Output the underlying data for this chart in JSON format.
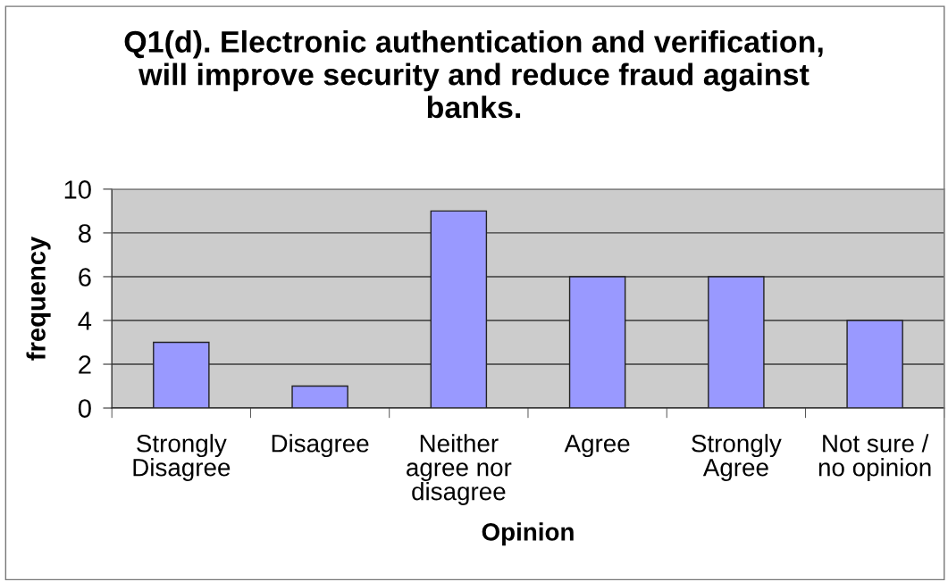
{
  "chart_data": {
    "type": "bar",
    "title": "Q1(d). Electronic authentication and verification,\nwill improve security and reduce fraud against\nbanks.",
    "xlabel": "Opinion",
    "ylabel": "frequency",
    "categories": [
      "Strongly\nDisagree",
      "Disagree",
      "Neither\nagree nor\ndisagree",
      "Agree",
      "Strongly\nAgree",
      "Not sure /\nno opinion"
    ],
    "values": [
      3,
      1,
      9,
      6,
      6,
      4
    ],
    "color": "#9999ff",
    "ylim": [
      0,
      10
    ],
    "yticks": [
      0,
      2,
      4,
      6,
      8,
      10
    ],
    "grid": "y",
    "legend": false
  }
}
